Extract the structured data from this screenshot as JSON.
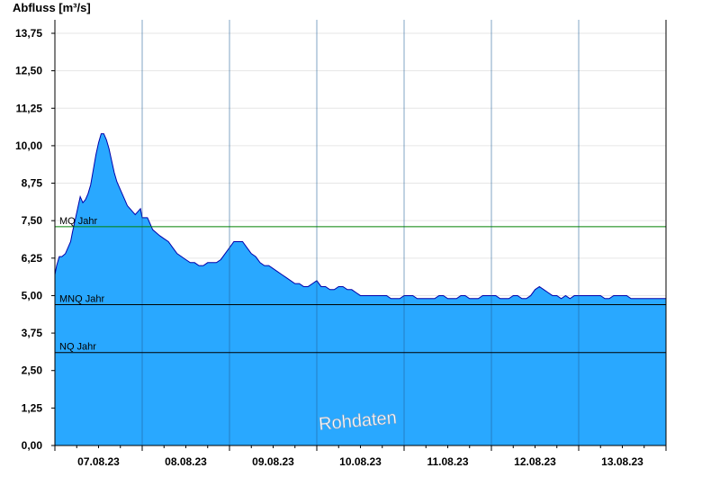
{
  "chart_data": {
    "type": "area",
    "ylabel": "Abfluss [m³/s]",
    "ylim": [
      0,
      14.2
    ],
    "yticks": [
      "0,00",
      "1,25",
      "2,50",
      "3,75",
      "5,00",
      "6,25",
      "7,50",
      "8,75",
      "10,00",
      "11,25",
      "12,50",
      "13,75"
    ],
    "ytick_values": [
      0,
      1.25,
      2.5,
      3.75,
      5.0,
      6.25,
      7.5,
      8.75,
      10.0,
      11.25,
      12.5,
      13.75
    ],
    "xlim": [
      0,
      7.0
    ],
    "xticks": [
      "07.08.23",
      "08.08.23",
      "09.08.23",
      "10.08.23",
      "11.08.23",
      "12.08.23",
      "13.08.23"
    ],
    "day_boundaries": [
      1,
      2,
      3,
      4,
      5,
      6
    ],
    "grid": true,
    "watermark": "Rohdaten",
    "fill_color": "#29a8ff",
    "line_color": "#0000aa",
    "reference_lines": [
      {
        "label": "MQ Jahr",
        "value": 7.3,
        "color": "#008000"
      },
      {
        "label": "MNQ Jahr",
        "value": 4.7,
        "color": "#000000"
      },
      {
        "label": "NQ Jahr",
        "value": 3.1,
        "color": "#000000"
      }
    ],
    "series": [
      {
        "x": [
          0,
          0.02,
          0.05,
          0.08,
          0.12,
          0.15,
          0.18,
          0.2,
          0.23,
          0.26,
          0.29,
          0.32,
          0.35,
          0.38,
          0.41,
          0.44,
          0.47,
          0.5,
          0.53,
          0.56,
          0.59,
          0.62,
          0.65,
          0.68,
          0.71,
          0.74,
          0.77,
          0.8,
          0.83,
          0.86,
          0.89,
          0.92,
          0.95,
          0.98,
          1.0,
          1.03,
          1.06,
          1.09,
          1.12,
          1.16,
          1.2,
          1.25,
          1.3,
          1.35,
          1.4,
          1.45,
          1.5,
          1.55,
          1.6,
          1.65,
          1.7,
          1.75,
          1.8,
          1.85,
          1.9,
          1.95,
          2.0,
          2.05,
          2.1,
          2.15,
          2.2,
          2.25,
          2.3,
          2.35,
          2.4,
          2.45,
          2.5,
          2.55,
          2.6,
          2.65,
          2.7,
          2.75,
          2.8,
          2.85,
          2.9,
          2.95,
          3.0,
          3.05,
          3.1,
          3.15,
          3.2,
          3.25,
          3.3,
          3.35,
          3.4,
          3.45,
          3.5,
          3.55,
          3.6,
          3.65,
          3.7,
          3.75,
          3.8,
          3.85,
          3.9,
          3.95,
          4.0,
          4.05,
          4.1,
          4.15,
          4.2,
          4.25,
          4.3,
          4.35,
          4.4,
          4.45,
          4.5,
          4.55,
          4.6,
          4.65,
          4.7,
          4.75,
          4.8,
          4.85,
          4.9,
          4.95,
          5.0,
          5.05,
          5.1,
          5.15,
          5.2,
          5.25,
          5.3,
          5.35,
          5.4,
          5.45,
          5.5,
          5.55,
          5.6,
          5.65,
          5.7,
          5.75,
          5.8,
          5.85,
          5.9,
          5.95,
          6.0,
          6.05,
          6.1,
          6.15,
          6.2,
          6.25,
          6.3,
          6.35,
          6.4,
          6.45,
          6.5,
          6.55,
          6.6,
          6.65,
          6.7,
          6.75,
          6.8,
          6.85,
          6.9,
          6.95,
          7.0
        ],
        "values": [
          5.7,
          6.0,
          6.3,
          6.3,
          6.4,
          6.6,
          6.8,
          7.1,
          7.5,
          7.9,
          8.3,
          8.1,
          8.2,
          8.4,
          8.7,
          9.2,
          9.7,
          10.1,
          10.4,
          10.4,
          10.2,
          9.9,
          9.5,
          9.1,
          8.8,
          8.6,
          8.4,
          8.2,
          8.0,
          7.9,
          7.8,
          7.7,
          7.8,
          7.9,
          7.6,
          7.6,
          7.6,
          7.4,
          7.2,
          7.1,
          7.0,
          6.9,
          6.8,
          6.6,
          6.4,
          6.3,
          6.2,
          6.1,
          6.1,
          6.0,
          6.0,
          6.1,
          6.1,
          6.1,
          6.2,
          6.4,
          6.6,
          6.8,
          6.8,
          6.8,
          6.6,
          6.4,
          6.3,
          6.1,
          6.0,
          6.0,
          5.9,
          5.8,
          5.7,
          5.6,
          5.5,
          5.4,
          5.4,
          5.3,
          5.3,
          5.4,
          5.5,
          5.3,
          5.3,
          5.2,
          5.2,
          5.3,
          5.3,
          5.2,
          5.2,
          5.1,
          5.0,
          5.0,
          5.0,
          5.0,
          5.0,
          5.0,
          5.0,
          4.9,
          4.9,
          4.9,
          5.0,
          5.0,
          5.0,
          4.9,
          4.9,
          4.9,
          4.9,
          4.9,
          5.0,
          5.0,
          4.9,
          4.9,
          4.9,
          5.0,
          5.0,
          4.9,
          4.9,
          4.9,
          5.0,
          5.0,
          5.0,
          5.0,
          4.9,
          4.9,
          4.9,
          5.0,
          5.0,
          4.9,
          4.9,
          5.0,
          5.2,
          5.3,
          5.2,
          5.1,
          5.0,
          5.0,
          4.9,
          5.0,
          4.9,
          5.0,
          5.0,
          5.0,
          5.0,
          5.0,
          5.0,
          5.0,
          4.9,
          4.9,
          5.0,
          5.0,
          5.0,
          5.0,
          4.9,
          4.9,
          4.9,
          4.9,
          4.9,
          4.9,
          4.9,
          4.9,
          4.9
        ]
      }
    ]
  }
}
